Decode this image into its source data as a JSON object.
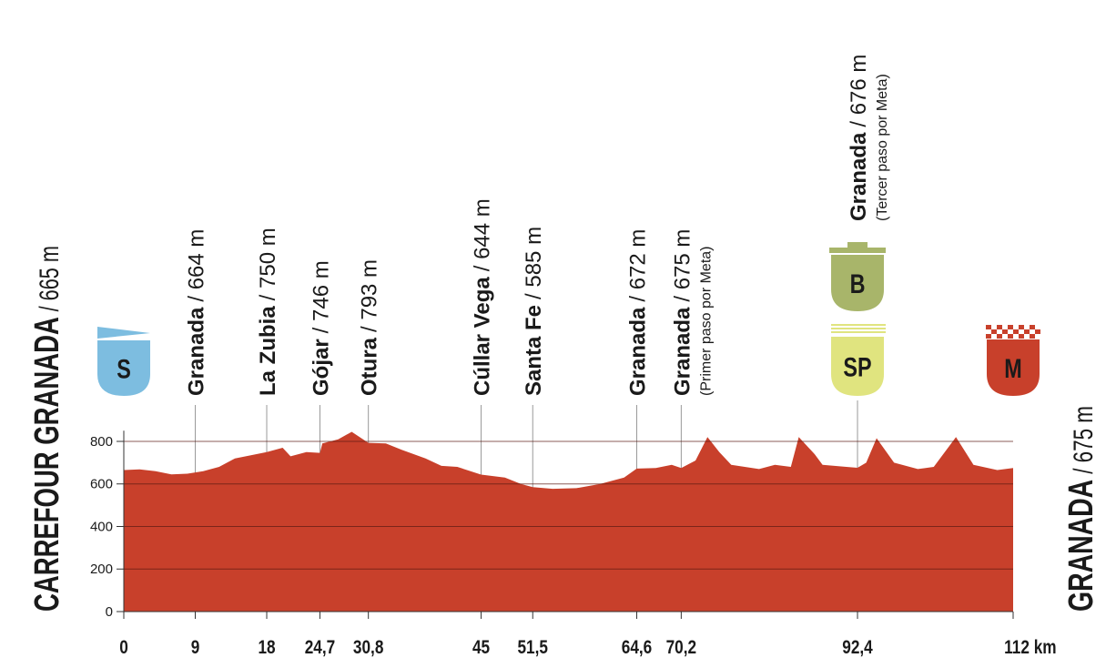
{
  "chart_data": {
    "type": "area",
    "start": {
      "name": "CARREFOUR GRANADA",
      "detail": "/ 665 m"
    },
    "finish": {
      "name": "GRANADA",
      "detail": "/ 675 m"
    },
    "badges": {
      "start": "S",
      "bonus": "B",
      "sprint": "SP",
      "finish": "M"
    },
    "x": [
      0,
      2,
      4,
      6,
      8,
      10,
      12,
      14,
      16,
      18,
      20,
      21,
      23,
      24.7,
      25,
      27,
      28.7,
      30.8,
      33,
      35,
      38,
      40,
      42,
      45,
      48,
      50,
      51.5,
      54,
      57,
      60,
      63,
      64.6,
      67,
      69,
      70.2,
      72,
      73.5,
      75,
      76.5,
      80,
      82,
      84,
      85,
      87,
      88,
      91,
      92.4,
      93.5,
      94.8,
      97,
      100,
      102,
      104.8,
      107,
      110,
      112
    ],
    "values": [
      665,
      668,
      660,
      645,
      648,
      660,
      680,
      720,
      735,
      750,
      770,
      730,
      750,
      746,
      790,
      810,
      845,
      793,
      790,
      760,
      720,
      685,
      680,
      644,
      630,
      600,
      585,
      577,
      580,
      600,
      630,
      672,
      675,
      690,
      675,
      710,
      820,
      750,
      690,
      670,
      690,
      680,
      820,
      740,
      690,
      680,
      676,
      700,
      815,
      700,
      670,
      680,
      820,
      690,
      665,
      675
    ],
    "color": "#c8402b",
    "xlim": [
      0,
      112
    ],
    "ylim": [
      0,
      850
    ],
    "yticks": [
      0,
      200,
      400,
      600,
      800
    ],
    "xticks": [
      0,
      9,
      18,
      {
        "value": 24.7,
        "label": "24,7"
      },
      {
        "value": 30.8,
        "label": "30,8"
      },
      45,
      {
        "value": 51.5,
        "label": "51,5"
      },
      {
        "value": 64.6,
        "label": "64,6"
      },
      {
        "value": 70.2,
        "label": "70,2"
      },
      {
        "value": 92.4,
        "label": "92,4"
      },
      {
        "value": 112,
        "label": "112 km"
      }
    ],
    "waypoints": [
      null,
      {
        "name": "Granada",
        "detail": "/ 664 m"
      },
      {
        "name": "La Zubia",
        "detail": "/ 750 m"
      },
      {
        "name": "Gójar",
        "detail": "/ 746 m"
      },
      {
        "name": "Otura",
        "detail": "/ 793 m"
      },
      {
        "name": "Cúllar Vega",
        "detail": "/ 644 m"
      },
      {
        "name": "Santa Fe",
        "detail": "/ 585 m"
      },
      {
        "name": "Granada",
        "detail": "/ 672 m"
      },
      {
        "name": "Granada",
        "detail": "/ 675 m",
        "note": "(Primer paso por Meta)"
      },
      {
        "name": "Granada",
        "detail": "/ 676 m",
        "note": "(Tercer paso por Meta)"
      },
      null
    ],
    "grid": true
  }
}
